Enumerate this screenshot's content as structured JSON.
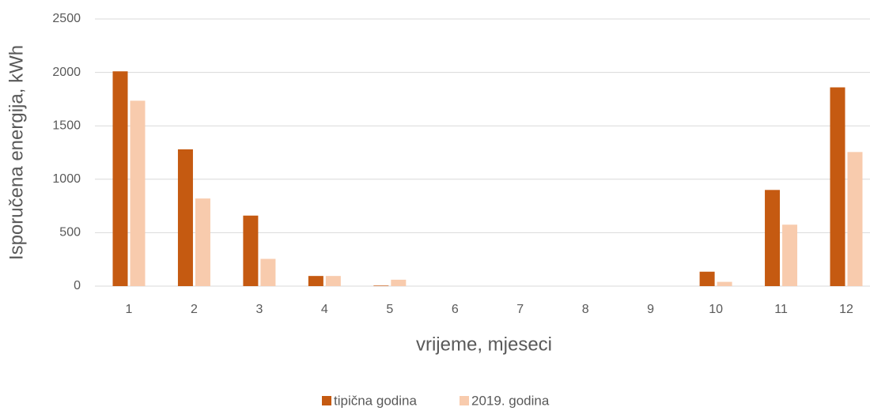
{
  "chart_data": {
    "type": "bar",
    "xlabel": "vrijeme, mjeseci",
    "ylabel": "Isporučena energija, kWh",
    "categories": [
      "1",
      "2",
      "3",
      "4",
      "5",
      "6",
      "7",
      "8",
      "9",
      "10",
      "11",
      "12"
    ],
    "series": [
      {
        "name": "tipična godina",
        "color": "#c55a11",
        "values": [
          2010,
          1280,
          660,
          95,
          5,
          0,
          0,
          0,
          0,
          135,
          900,
          1860
        ]
      },
      {
        "name": "2019. godina",
        "color": "#f8cbad",
        "values": [
          1735,
          820,
          255,
          95,
          60,
          0,
          0,
          0,
          0,
          40,
          575,
          1255
        ]
      }
    ],
    "ylim": [
      0,
      2500
    ],
    "yticks": [
      0,
      500,
      1000,
      1500,
      2000,
      2500
    ],
    "grid": true,
    "legend": "bottom"
  }
}
